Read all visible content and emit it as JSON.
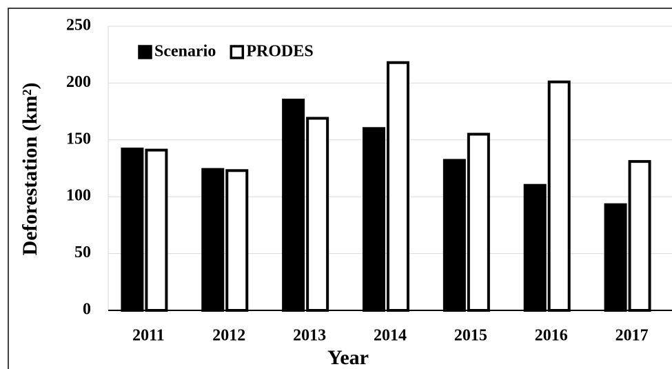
{
  "chart_data": {
    "type": "bar",
    "x_label": "Year",
    "y_label": "Deforestation (km²)",
    "categories": [
      "2011",
      "2012",
      "2013",
      "2014",
      "2015",
      "2016",
      "2017"
    ],
    "series": [
      {
        "name": "Scenario",
        "color": "#000000",
        "values": [
          142,
          124,
          185,
          160,
          132,
          110,
          93
        ]
      },
      {
        "name": "PRODES",
        "color": "#ffffff",
        "values": [
          141,
          123,
          169,
          218,
          155,
          201,
          131
        ]
      }
    ],
    "ylim": [
      0,
      250
    ],
    "yticks": [
      0,
      50,
      100,
      150,
      200,
      250
    ],
    "grid": true,
    "legend": "top-left"
  }
}
